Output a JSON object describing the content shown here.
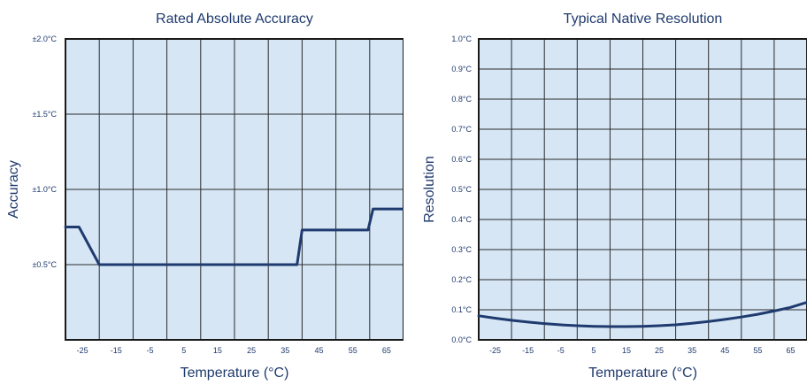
{
  "colors": {
    "plot_background": "#d6e6f5",
    "grid": "#2b2b2b",
    "frame": "#1a1a1a",
    "series": "#1f3a6e",
    "text": "#1f3a6e"
  },
  "chart_data": [
    {
      "type": "line",
      "title": "Rated Absolute Accuracy",
      "xlabel": "Temperature (°C)",
      "ylabel": "Accuracy",
      "xlim": [
        -30,
        70
      ],
      "ylim": [
        0,
        2.0
      ],
      "x_ticks": [
        -25,
        -15,
        -5,
        5,
        15,
        25,
        35,
        45,
        55,
        65
      ],
      "x_tick_labels": [
        "-25",
        "-15",
        "-5",
        "5",
        "15",
        "25",
        "35",
        "45",
        "55",
        "65"
      ],
      "y_ticks": [
        0.5,
        1.0,
        1.5,
        2.0
      ],
      "y_tick_labels": [
        "±0.5°C",
        "±1.0°C",
        "±1.5°C",
        "±2.0°C"
      ],
      "x_grid": [
        -30,
        -20,
        -10,
        0,
        10,
        20,
        30,
        40,
        50,
        60,
        70
      ],
      "y_grid": [
        0,
        0.5,
        1.0,
        1.5,
        2.0
      ],
      "grid": true,
      "series": [
        {
          "x": [
            -30,
            -26,
            -20,
            38.5,
            40,
            59.5,
            61,
            70
          ],
          "y": [
            0.75,
            0.75,
            0.5,
            0.5,
            0.73,
            0.73,
            0.87,
            0.87
          ]
        }
      ]
    },
    {
      "type": "line",
      "title": "Typical Native Resolution",
      "xlabel": "Temperature (°C)",
      "ylabel": "Resolution",
      "xlim": [
        -30,
        70
      ],
      "ylim": [
        0,
        1.0
      ],
      "x_ticks": [
        -25,
        -15,
        -5,
        5,
        15,
        25,
        35,
        45,
        55,
        65
      ],
      "x_tick_labels": [
        "-25",
        "-15",
        "-5",
        "5",
        "15",
        "25",
        "35",
        "45",
        "55",
        "65"
      ],
      "y_ticks": [
        0,
        0.1,
        0.2,
        0.3,
        0.4,
        0.5,
        0.6,
        0.7,
        0.8,
        0.9,
        1.0
      ],
      "y_tick_labels": [
        "0.0°C",
        "0.1°C",
        "0.2°C",
        "0.3°C",
        "0.4°C",
        "0.5°C",
        "0.6°C",
        "0.7°C",
        "0.8°C",
        "0.9°C",
        "1.0°C"
      ],
      "x_grid": [
        -30,
        -20,
        -10,
        0,
        10,
        20,
        30,
        40,
        50,
        60,
        70
      ],
      "y_grid": [
        0,
        0.1,
        0.2,
        0.3,
        0.4,
        0.5,
        0.6,
        0.7,
        0.8,
        0.9,
        1.0
      ],
      "grid": true,
      "series": [
        {
          "x": [
            -30,
            -25,
            -20,
            -15,
            -10,
            -5,
            0,
            5,
            10,
            15,
            20,
            25,
            30,
            35,
            40,
            45,
            50,
            55,
            60,
            65,
            70
          ],
          "y": [
            0.08,
            0.072,
            0.065,
            0.059,
            0.054,
            0.05,
            0.047,
            0.045,
            0.044,
            0.044,
            0.045,
            0.047,
            0.05,
            0.055,
            0.061,
            0.068,
            0.076,
            0.085,
            0.096,
            0.108,
            0.125
          ]
        }
      ]
    }
  ]
}
